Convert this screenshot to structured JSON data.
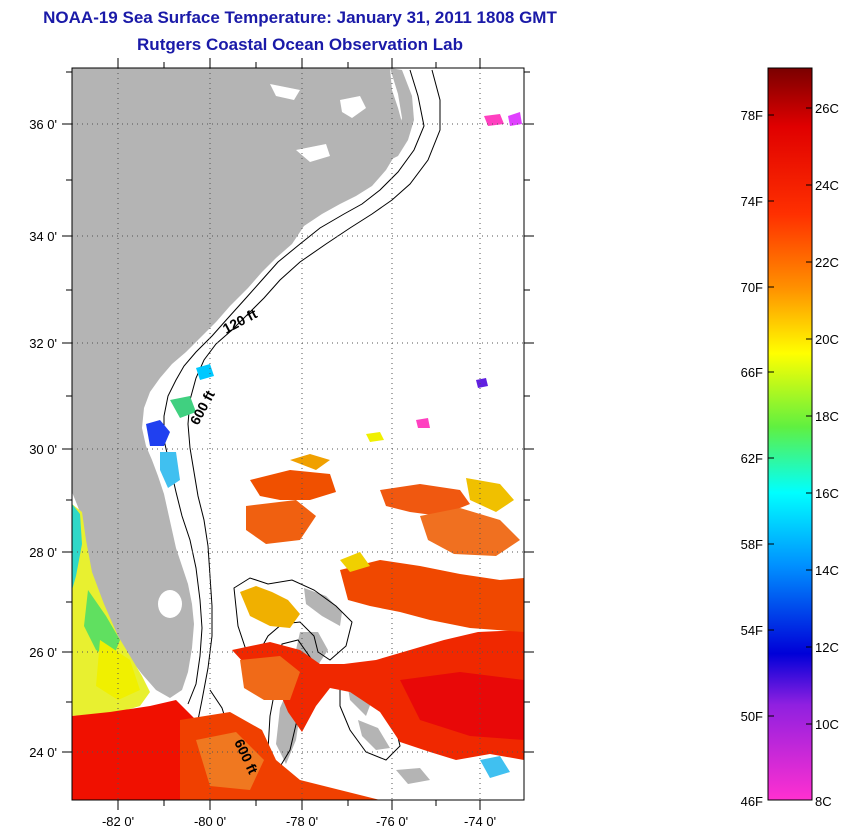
{
  "header": {
    "title": "NOAA-19 Sea Surface Temperature:  January 31, 2011 1808 GMT",
    "subtitle": "Rutgers Coastal Ocean Observation Lab"
  },
  "map": {
    "lat_labels": [
      "36 0'",
      "34 0'",
      "32 0'",
      "30 0'",
      "28 0'",
      "26 0'",
      "24 0'"
    ],
    "lon_labels": [
      "-82 0'",
      "-80 0'",
      "-78 0'",
      "-76 0'",
      "-74 0'"
    ],
    "lat_range": [
      23,
      37
    ],
    "lon_range": [
      -83,
      -73
    ],
    "contour_labels": [
      "120 ft",
      "600 ft",
      "600 ft"
    ],
    "colors": {
      "land": "#b4b4b4",
      "ocean_nodata": "#ffffff",
      "frame": "#000000",
      "grid": "#666666"
    }
  },
  "colorbar": {
    "fahrenheit_labels": [
      "78F",
      "74F",
      "70F",
      "66F",
      "62F",
      "58F",
      "54F",
      "50F",
      "46F"
    ],
    "celsius_labels": [
      "26C",
      "24C",
      "22C",
      "20C",
      "18C",
      "16C",
      "14C",
      "12C",
      "10C",
      "8C"
    ],
    "gradient": [
      {
        "pos": 0.0,
        "color": "#7a0000"
      },
      {
        "pos": 0.08,
        "color": "#e00000"
      },
      {
        "pos": 0.2,
        "color": "#ff3000"
      },
      {
        "pos": 0.3,
        "color": "#ff9000"
      },
      {
        "pos": 0.39,
        "color": "#ffff00"
      },
      {
        "pos": 0.49,
        "color": "#60f040"
      },
      {
        "pos": 0.58,
        "color": "#00ffff"
      },
      {
        "pos": 0.68,
        "color": "#0090ff"
      },
      {
        "pos": 0.8,
        "color": "#0000d8"
      },
      {
        "pos": 0.87,
        "color": "#9020e0"
      },
      {
        "pos": 1.0,
        "color": "#ff30d0"
      }
    ]
  }
}
